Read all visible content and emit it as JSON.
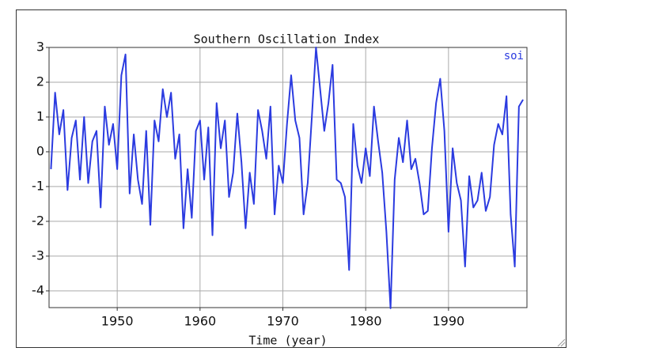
{
  "chart_data": {
    "type": "line",
    "title": "Southern Oscillation Index",
    "x_label": "Time (year)",
    "x": [
      1942.0,
      1942.5,
      1943.0,
      1943.5,
      1944.0,
      1944.5,
      1945.0,
      1945.5,
      1946.0,
      1946.5,
      1947.0,
      1947.5,
      1948.0,
      1948.5,
      1949.0,
      1949.5,
      1950.0,
      1950.5,
      1951.0,
      1951.5,
      1952.0,
      1952.5,
      1953.0,
      1953.5,
      1954.0,
      1954.5,
      1955.0,
      1955.5,
      1956.0,
      1956.5,
      1957.0,
      1957.5,
      1958.0,
      1958.5,
      1959.0,
      1959.5,
      1960.0,
      1960.5,
      1961.0,
      1961.5,
      1962.0,
      1962.5,
      1963.0,
      1963.5,
      1964.0,
      1964.5,
      1965.0,
      1965.5,
      1966.0,
      1966.5,
      1967.0,
      1967.5,
      1968.0,
      1968.5,
      1969.0,
      1969.5,
      1970.0,
      1970.5,
      1971.0,
      1971.5,
      1972.0,
      1972.5,
      1973.0,
      1973.5,
      1974.0,
      1974.5,
      1975.0,
      1975.5,
      1976.0,
      1976.5,
      1977.0,
      1977.5,
      1978.0,
      1978.5,
      1979.0,
      1979.5,
      1980.0,
      1980.5,
      1981.0,
      1981.5,
      1982.0,
      1982.5,
      1983.0,
      1983.5,
      1984.0,
      1984.5,
      1985.0,
      1985.5,
      1986.0,
      1986.5,
      1987.0,
      1987.5,
      1988.0,
      1988.5,
      1989.0,
      1989.5,
      1990.0,
      1990.5,
      1991.0,
      1991.5,
      1992.0,
      1992.5,
      1993.0,
      1993.5,
      1994.0,
      1994.5,
      1995.0,
      1995.5,
      1996.0,
      1996.5,
      1997.0,
      1997.5,
      1998.0,
      1998.5,
      1999.0
    ],
    "series": [
      {
        "name": "soi",
        "color": "#2b3be0",
        "values": [
          -0.5,
          1.7,
          0.5,
          1.2,
          -1.1,
          0.4,
          0.9,
          -0.8,
          1.0,
          -0.9,
          0.3,
          0.6,
          -1.6,
          1.3,
          0.2,
          0.8,
          -0.5,
          2.2,
          2.8,
          -1.2,
          0.5,
          -0.8,
          -1.5,
          0.6,
          -2.1,
          0.9,
          0.3,
          1.8,
          1.0,
          1.7,
          -0.2,
          0.5,
          -2.2,
          -0.5,
          -1.9,
          0.6,
          0.9,
          -0.8,
          0.7,
          -2.4,
          1.4,
          0.1,
          0.9,
          -1.3,
          -0.6,
          1.1,
          -0.3,
          -2.2,
          -0.6,
          -1.5,
          1.2,
          0.6,
          -0.2,
          1.3,
          -1.8,
          -0.4,
          -0.9,
          0.8,
          2.2,
          0.9,
          0.4,
          -1.8,
          -0.9,
          1.0,
          3.0,
          1.8,
          0.6,
          1.4,
          2.5,
          -0.8,
          -0.9,
          -1.3,
          -3.4,
          0.8,
          -0.4,
          -0.9,
          0.1,
          -0.7,
          1.3,
          0.3,
          -0.6,
          -2.3,
          -4.5,
          -0.8,
          0.4,
          -0.3,
          0.9,
          -0.5,
          -0.2,
          -0.9,
          -1.8,
          -1.7,
          0.1,
          1.4,
          2.1,
          0.6,
          -2.3,
          0.1,
          -0.9,
          -1.4,
          -3.3,
          -0.7,
          -1.6,
          -1.4,
          -0.6,
          -1.7,
          -1.3,
          0.2,
          0.8,
          0.5,
          1.6,
          -1.8,
          -3.3,
          1.3,
          1.5
        ]
      }
    ],
    "xlim": [
      1941.77,
      1999.47
    ],
    "xticks": [
      1950,
      1960,
      1970,
      1980,
      1990
    ],
    "ylim": [
      -4.48,
      3
    ],
    "yticks": [
      -4,
      -3,
      -2,
      -1,
      0,
      1,
      2,
      3
    ],
    "grid": true,
    "legend": "upper right"
  }
}
